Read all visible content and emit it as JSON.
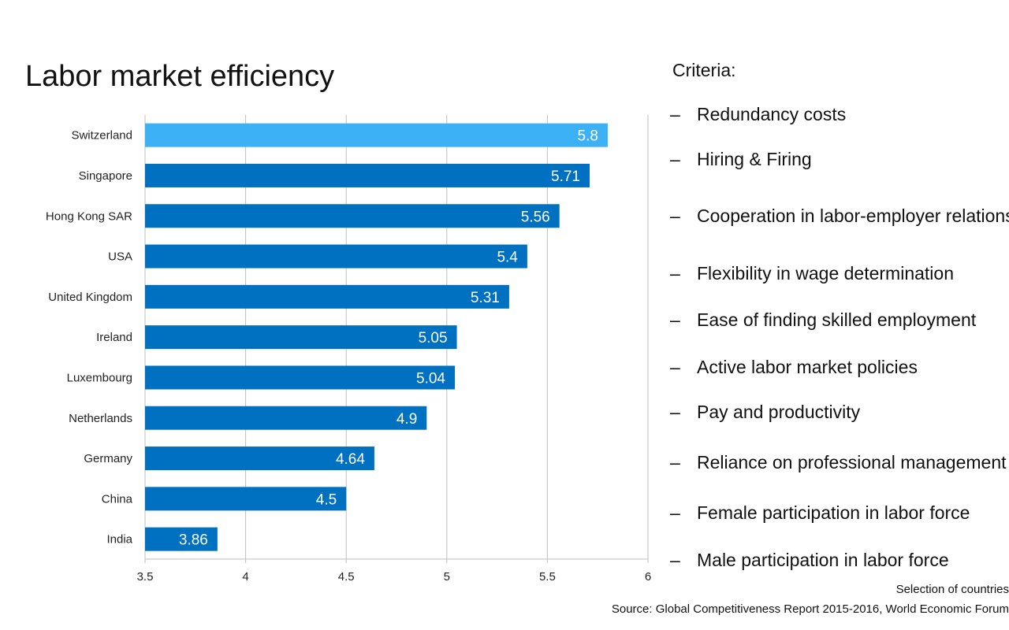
{
  "title": "Labor market efficiency",
  "criteria": {
    "heading": "Criteria:",
    "bullet": "–",
    "items": [
      "Redundancy  costs",
      "Hiring & Firing",
      "Cooperation  in labor-employer  relations",
      "Flexibility  in wage determination",
      "Ease of finding  skilled  employment",
      "Active labor market policies",
      "Pay and productivity",
      "Reliance on professional  management",
      "Female participation  in labor force",
      "Male participation  in labor force"
    ]
  },
  "footnotes": {
    "selection": "Selection of countries",
    "source": "Source: Global Competitiveness  Report 2015-2016, World  Economic Forum"
  },
  "colors": {
    "highlight_bar": "#3db1f5",
    "bar": "#0070c0",
    "grid": "#bfbfbf",
    "value_label": "#ffffff"
  },
  "chart_data": {
    "type": "bar",
    "orientation": "horizontal",
    "title": "Labor market efficiency",
    "categories": [
      "Switzerland",
      "Singapore",
      "Hong Kong SAR",
      "USA",
      "United Kingdom",
      "Ireland",
      "Luxembourg",
      "Netherlands",
      "Germany",
      "China",
      "India"
    ],
    "values": [
      5.8,
      5.71,
      5.56,
      5.4,
      5.31,
      5.05,
      5.04,
      4.9,
      4.64,
      4.5,
      3.86
    ],
    "value_labels": [
      "5.8",
      "5.71",
      "5.56",
      "5.4",
      "5.31",
      "5.05",
      "5.04",
      "4.9",
      "4.64",
      "4.5",
      "3.86"
    ],
    "highlighted": [
      "Switzerland"
    ],
    "xlim": [
      3.5,
      6
    ],
    "xticks": [
      3.5,
      4,
      4.5,
      5,
      5.5,
      6
    ],
    "xtick_labels": [
      "3.5",
      "4",
      "4.5",
      "5",
      "5.5",
      "6"
    ],
    "grid": "vertical",
    "legend": "none"
  }
}
